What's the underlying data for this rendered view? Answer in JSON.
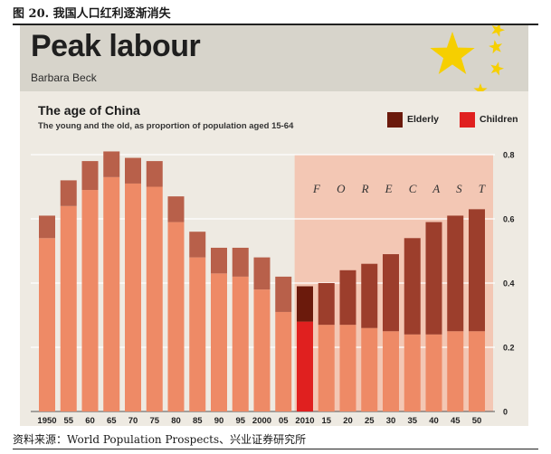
{
  "figure_caption": "图 20. 我国人口红利逐渐消失",
  "header": {
    "title": "Peak labour",
    "author": "Barbara Beck"
  },
  "colors": {
    "header_bg": "#d7d4cb",
    "panel_bg": "#eeeae2",
    "forecast_bg": "#f3c7b4",
    "children_hist": "#ee8a66",
    "elderly_hist": "#b8604a",
    "children_2010": "#e0201f",
    "elderly_2010": "#6b1a0c",
    "children_fc": "#ee8a66",
    "elderly_fc": "#9c3e2c",
    "star": "#f6cf00"
  },
  "legend": {
    "elderly": "Elderly",
    "children": "Children"
  },
  "icons": {
    "stars": "chinese-flag-stars"
  },
  "footer": {
    "source": "资料来源：World Population Prospects、兴业证券研究所"
  },
  "chart_data": {
    "type": "bar",
    "stacked": true,
    "title": "The age of China",
    "subtitle": "The young and the old, as proportion of population aged 15-64",
    "annotation": "F O R E C A S T",
    "forecast_from": "2010",
    "categories": [
      "1950",
      "55",
      "60",
      "65",
      "70",
      "75",
      "80",
      "85",
      "90",
      "95",
      "2000",
      "05",
      "2010",
      "15",
      "20",
      "25",
      "30",
      "35",
      "40",
      "45",
      "50"
    ],
    "series": [
      {
        "name": "Children",
        "values": [
          0.54,
          0.64,
          0.69,
          0.73,
          0.71,
          0.7,
          0.59,
          0.48,
          0.43,
          0.42,
          0.38,
          0.31,
          0.28,
          0.27,
          0.27,
          0.26,
          0.25,
          0.24,
          0.24,
          0.25,
          0.25
        ]
      },
      {
        "name": "Elderly",
        "values": [
          0.07,
          0.08,
          0.09,
          0.08,
          0.08,
          0.08,
          0.08,
          0.08,
          0.08,
          0.09,
          0.1,
          0.11,
          0.11,
          0.13,
          0.17,
          0.2,
          0.24,
          0.3,
          0.35,
          0.36,
          0.38
        ]
      }
    ],
    "ylim": [
      0,
      0.8
    ],
    "yticks": [
      "0",
      "0.2",
      "0.4",
      "0.6",
      "0.8"
    ],
    "xlabel": "",
    "ylabel": ""
  }
}
